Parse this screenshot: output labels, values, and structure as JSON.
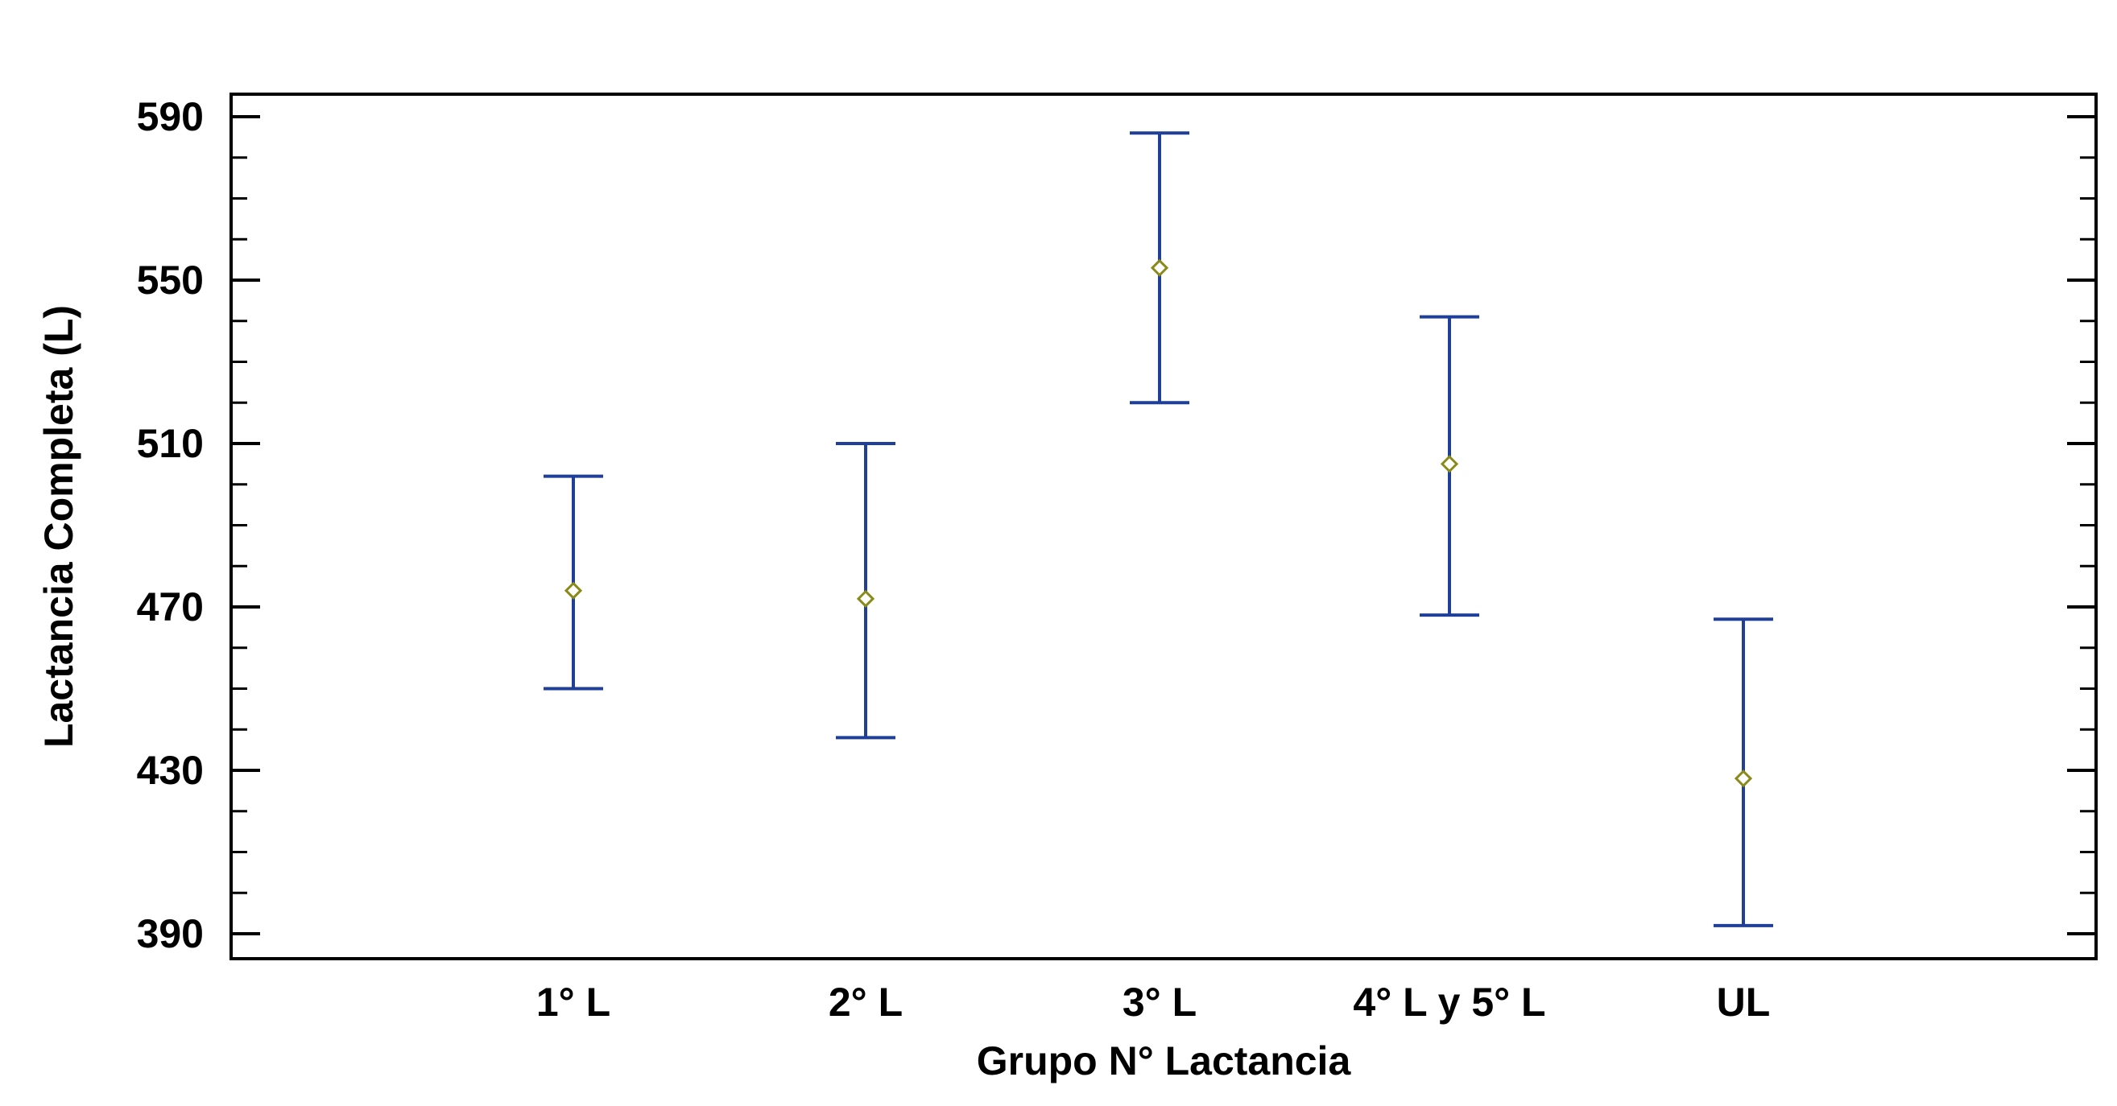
{
  "chart_data": {
    "type": "scatter",
    "subtype": "means-with-error-bars",
    "title": "",
    "xlabel": "Grupo N° Lactancia",
    "ylabel": "Lactancia Completa (L)",
    "categories": [
      "1° L",
      "2° L",
      "3° L",
      "4° L y 5° L",
      "UL"
    ],
    "series": [
      {
        "means": [
          474,
          472,
          553,
          505,
          428
        ],
        "lower": [
          450,
          438,
          520,
          468,
          392
        ],
        "upper": [
          502,
          510,
          586,
          541,
          467
        ]
      }
    ],
    "ylim": [
      385,
      595
    ],
    "yticks": [
      390,
      430,
      470,
      510,
      550,
      590
    ],
    "ytick_labels": [
      "390",
      "430",
      "470",
      "510",
      "550",
      "590"
    ],
    "grid": false,
    "legend": "none",
    "colors": {
      "error_bar": "#1f3f99",
      "marker": "#8a8a1a",
      "axis": "#000000"
    }
  }
}
